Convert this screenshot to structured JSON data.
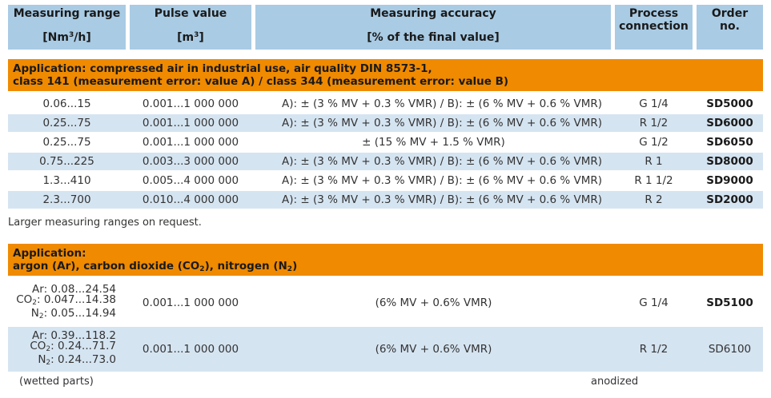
{
  "header": {
    "measuring_range": "Measuring range",
    "measuring_range_unit_pre": "[Nm",
    "measuring_range_unit_sup": "3",
    "measuring_range_unit_post": "/h]",
    "pulse_value": "Pulse value",
    "pulse_value_unit_pre": "[m",
    "pulse_value_unit_sup": "3",
    "pulse_value_unit_post": "]",
    "measuring_accuracy": "Measuring accuracy",
    "measuring_accuracy_unit": "[% of the final value]",
    "process_1": "Process",
    "process_2": "connection",
    "order_1": "Order",
    "order_2": "no."
  },
  "section1": {
    "title_line1": "Application: compressed air in industrial use, air quality DIN 8573-1,",
    "title_line2": "class 141 (measurement error: value A) / class 344 (measurement error: value B)",
    "rows": [
      {
        "range": "0.06...15",
        "pulse": "0.001...1 000 000",
        "accuracy": "A): ± (3 % MV + 0.3 % VMR) / B): ± (6 % MV + 0.6 % VMR)",
        "connection": "G 1/4",
        "order": "SD5000"
      },
      {
        "range": "0.25...75",
        "pulse": "0.001...1 000 000",
        "accuracy": "A): ± (3 % MV + 0.3 % VMR) / B): ± (6 % MV + 0.6 % VMR)",
        "connection": "R 1/2",
        "order": "SD6000"
      },
      {
        "range": "0.25...75",
        "pulse": "0.001...1 000 000",
        "accuracy": "± (15 % MV + 1.5 % VMR)",
        "connection": "G 1/2",
        "order": "SD6050"
      },
      {
        "range": "0.75...225",
        "pulse": "0.003...3 000 000",
        "accuracy": "A): ± (3 % MV + 0.3 % VMR) / B): ± (6 % MV + 0.6 % VMR)",
        "connection": "R 1",
        "order": "SD8000"
      },
      {
        "range": "1.3...410",
        "pulse": "0.005...4 000 000",
        "accuracy": "A): ± (3 % MV + 0.3 % VMR) / B): ± (6 % MV + 0.6 % VMR)",
        "connection": "R 1 1/2",
        "order": "SD9000"
      },
      {
        "range": "2.3...700",
        "pulse": "0.010...4 000 000",
        "accuracy": "A): ± (3 % MV + 0.3 % VMR) / B): ± (6 % MV + 0.6 % VMR)",
        "connection": "R 2",
        "order": "SD2000"
      }
    ],
    "note": "Larger measuring ranges on request."
  },
  "section2": {
    "title_line1": "Application:",
    "title_line2_a": "argon (Ar), carbon dioxide (CO",
    "title_line2_sub1": "2",
    "title_line2_b": "), nitrogen (N",
    "title_line2_sub2": "2",
    "title_line2_c": ")",
    "rows": [
      {
        "ar": "Ar: 0.08...24.54",
        "co2_pre": "CO",
        "co2_sub": "2",
        "co2_val": ": 0.047...14.38",
        "n2_pre": "N",
        "n2_sub": "2",
        "n2_val": ": 0.05...14.94",
        "pulse": "0.001...1 000 000",
        "accuracy": "(6% MV + 0.6% VMR)",
        "connection": "G 1/4",
        "order": "SD5100"
      },
      {
        "ar": "Ar: 0.39...118.2",
        "co2_pre": "CO",
        "co2_sub": "2",
        "co2_val": ": 0.24...71.7",
        "n2_pre": "N",
        "n2_sub": "2",
        "n2_val": ": 0.24...73.0",
        "pulse": "0.001...1 000 000",
        "accuracy": "(6% MV + 0.6% VMR)",
        "connection": "R 1/2",
        "order": "SD6100"
      }
    ]
  },
  "footer": {
    "left": "(wetted parts)",
    "right": "anodized"
  }
}
